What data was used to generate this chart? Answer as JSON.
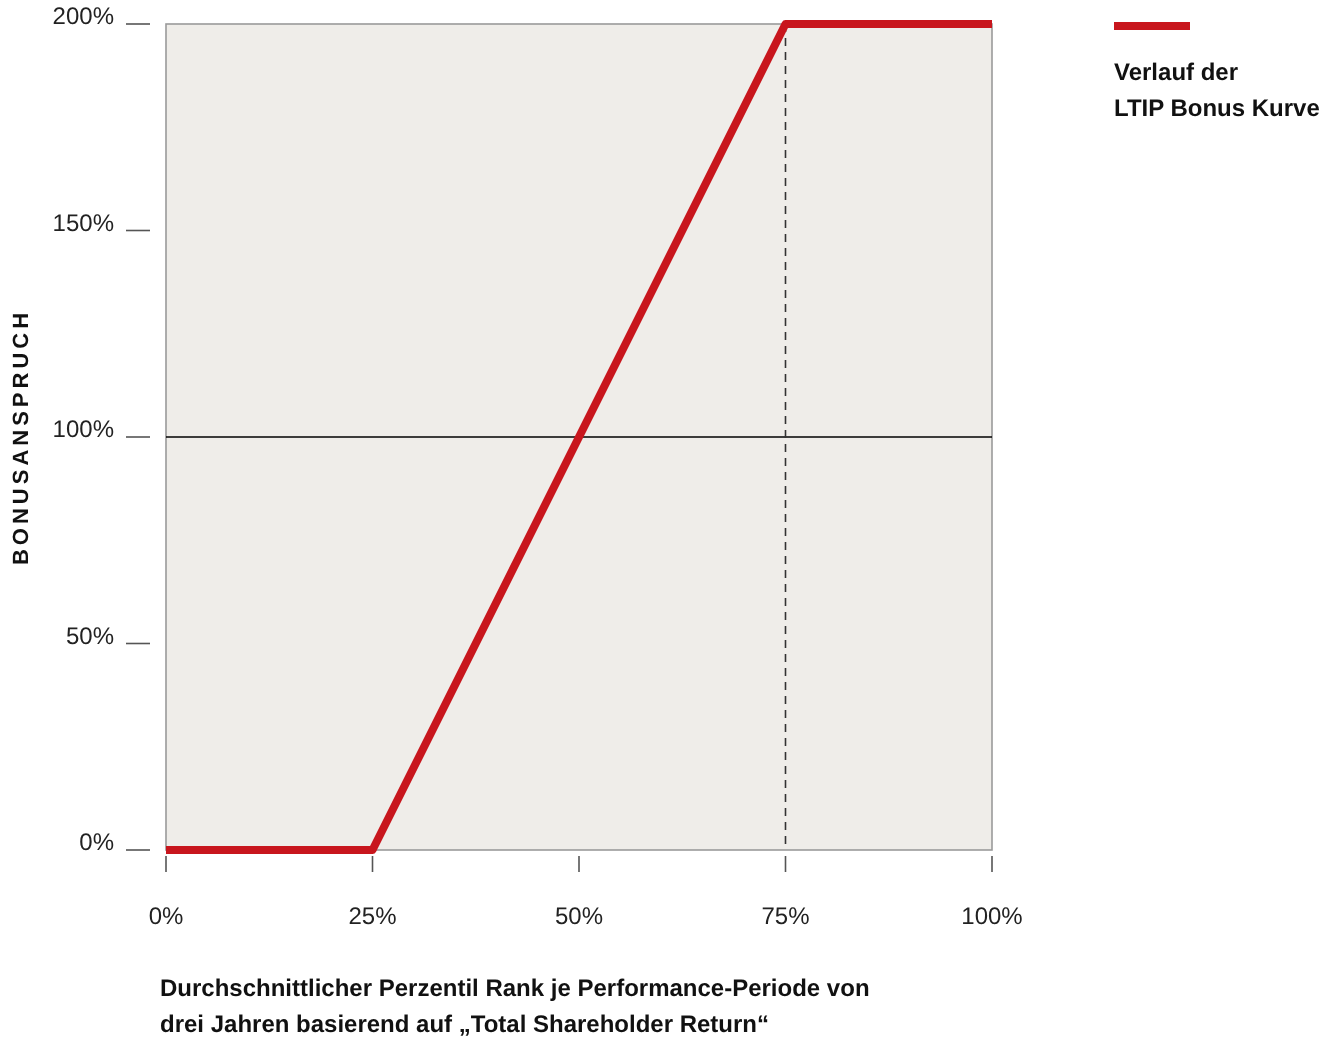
{
  "chart_data": {
    "type": "line",
    "xlabel": "Durchschnittlicher Perzentil Rank je Performance-Periode von\ndrei Jahren basierend auf „Total Shareholder Return“",
    "ylabel": "BONUSANSPRUCH",
    "x": [
      0,
      25,
      75,
      100
    ],
    "series": [
      {
        "name": "Verlauf der\nLTIP Bonus Kurve",
        "color": "#c8161d",
        "values": [
          0,
          0,
          200,
          200
        ]
      }
    ],
    "xlim": [
      0,
      100
    ],
    "ylim": [
      0,
      200
    ],
    "xticks": [
      {
        "value": 0,
        "label": "0%"
      },
      {
        "value": 25,
        "label": "25%"
      },
      {
        "value": 50,
        "label": "50%"
      },
      {
        "value": 75,
        "label": "75%"
      },
      {
        "value": 100,
        "label": "100%"
      }
    ],
    "yticks": [
      {
        "value": 0,
        "label": "0%"
      },
      {
        "value": 50,
        "label": "50%"
      },
      {
        "value": 100,
        "label": "100%"
      },
      {
        "value": 150,
        "label": "150%"
      },
      {
        "value": 200,
        "label": "200%"
      }
    ],
    "ref_lines": [
      {
        "axis": "y",
        "value": 100,
        "color": "#000000",
        "line_style": "solid"
      },
      {
        "axis": "x",
        "value": 75,
        "color": "#333333",
        "line_style": "dashed"
      }
    ],
    "legend": "top right",
    "grid": false,
    "marker": "none",
    "line_style": "solid"
  }
}
